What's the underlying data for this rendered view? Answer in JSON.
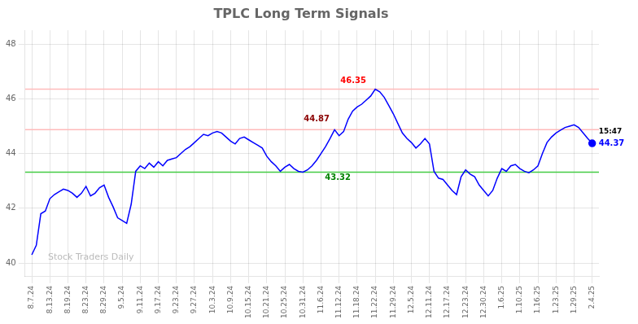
{
  "chart_data": {
    "type": "line",
    "title": "TPLC Long Term Signals",
    "categories": [
      "8.7.24",
      null,
      null,
      null,
      "8.13.24",
      null,
      null,
      null,
      "8.19.24",
      null,
      null,
      null,
      "8.23.24",
      null,
      null,
      null,
      "8.29.24",
      null,
      null,
      null,
      "9.5.24",
      null,
      null,
      null,
      "9.11.24",
      null,
      null,
      null,
      "9.17.24",
      null,
      null,
      null,
      "9.23.24",
      null,
      null,
      null,
      "9.27.24",
      null,
      null,
      null,
      "10.3.24",
      null,
      null,
      null,
      "10.9.24",
      null,
      null,
      null,
      "10.15.24",
      null,
      null,
      null,
      "10.21.24",
      null,
      null,
      null,
      "10.25.24",
      null,
      null,
      null,
      "10.31.24",
      null,
      null,
      null,
      "11.6.24",
      null,
      null,
      null,
      "11.12.24",
      null,
      null,
      null,
      "11.18.24",
      null,
      null,
      null,
      "11.22.24",
      null,
      null,
      null,
      "11.29.24",
      null,
      null,
      null,
      "12.5.24",
      null,
      null,
      null,
      "12.11.24",
      null,
      null,
      null,
      "12.17.24",
      null,
      null,
      null,
      "12.23.24",
      null,
      null,
      null,
      "12.30.24",
      null,
      null,
      null,
      "1.6.25",
      null,
      null,
      null,
      "1.10.25",
      null,
      null,
      null,
      "1.16.25",
      null,
      null,
      null,
      "1.23.25",
      null,
      null,
      null,
      "1.29.25",
      null,
      null,
      null,
      "2.4.25"
    ],
    "values": [
      40.3,
      40.65,
      41.8,
      41.9,
      42.35,
      42.5,
      42.6,
      42.7,
      42.65,
      42.55,
      42.4,
      42.55,
      42.8,
      42.45,
      42.55,
      42.75,
      42.85,
      42.4,
      42.05,
      41.65,
      41.55,
      41.45,
      42.15,
      43.35,
      43.55,
      43.45,
      43.65,
      43.5,
      43.7,
      43.55,
      43.75,
      43.8,
      43.85,
      44.0,
      44.15,
      44.25,
      44.4,
      44.55,
      44.7,
      44.65,
      44.75,
      44.8,
      44.75,
      44.6,
      44.45,
      44.35,
      44.55,
      44.6,
      44.5,
      44.4,
      44.3,
      44.2,
      43.9,
      43.7,
      43.55,
      43.35,
      43.5,
      43.6,
      43.45,
      43.35,
      43.32,
      43.4,
      43.55,
      43.75,
      44.0,
      44.25,
      44.55,
      44.87,
      44.65,
      44.8,
      45.25,
      45.55,
      45.7,
      45.8,
      45.95,
      46.1,
      46.35,
      46.25,
      46.05,
      45.75,
      45.45,
      45.1,
      44.75,
      44.55,
      44.4,
      44.2,
      44.35,
      44.55,
      44.35,
      43.35,
      43.1,
      43.05,
      42.85,
      42.65,
      42.5,
      43.15,
      43.4,
      43.25,
      43.15,
      42.85,
      42.65,
      42.45,
      42.65,
      43.1,
      43.45,
      43.35,
      43.55,
      43.6,
      43.45,
      43.35,
      43.3,
      43.4,
      43.55,
      44.0,
      44.4,
      44.6,
      44.75,
      44.85,
      44.95,
      45.0,
      45.05,
      44.95,
      44.75,
      44.55,
      44.37
    ],
    "color": "blue",
    "ylim": [
      39.5,
      48.5
    ],
    "yticks": [
      40,
      42,
      44,
      46,
      48
    ],
    "grid": true,
    "hlines": [
      {
        "value": 43.32,
        "color": "#44cc44"
      },
      {
        "value": 44.87,
        "color": "#ffbbbb"
      },
      {
        "value": 46.35,
        "color": "#ffbbbb"
      }
    ],
    "annotations": [
      {
        "text": "46.35",
        "color": "red",
        "index": 76,
        "y": 46.35
      },
      {
        "text": "43.32",
        "color": "green",
        "index": 60,
        "y": 43.32
      },
      {
        "text": "44.87",
        "color": "darkred",
        "index": 67,
        "y": 44.87
      },
      {
        "text": "15:47",
        "color": "black",
        "index": 124,
        "y": 44.37
      },
      {
        "text": "44.37",
        "color": "blue",
        "index": 124,
        "y": 44.37
      },
      {
        "text": "Stock Traders Daily",
        "color": "#bbbbbb"
      }
    ]
  }
}
